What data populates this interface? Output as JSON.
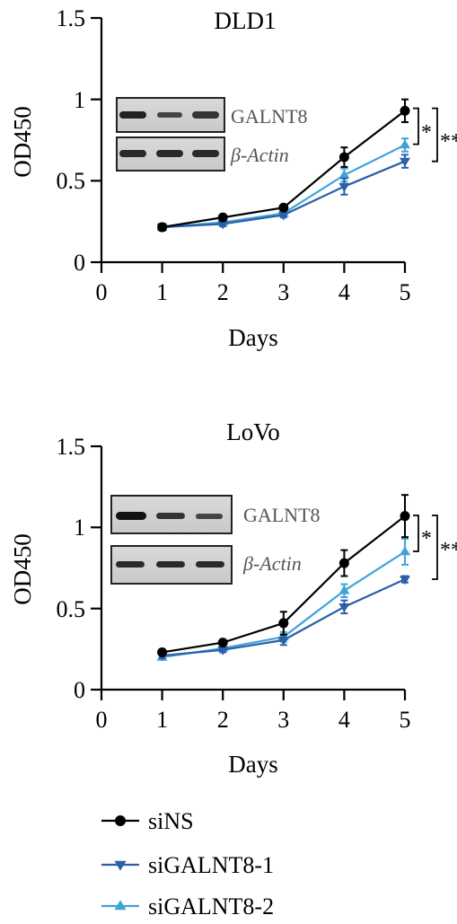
{
  "chart_data": [
    {
      "type": "line",
      "title": "DLD1",
      "xlabel": "Days",
      "ylabel": "OD450",
      "x": [
        1,
        2,
        3,
        4,
        5
      ],
      "xlim": [
        0,
        5
      ],
      "ylim": [
        0,
        1.5
      ],
      "xticks": [
        "0",
        "1",
        "2",
        "3",
        "4",
        "5"
      ],
      "yticks": [
        "0",
        "0.5",
        "1",
        "1.5"
      ],
      "series": [
        {
          "name": "siNS",
          "values": [
            0.215,
            0.275,
            0.335,
            0.645,
            0.93
          ],
          "errors": [
            0.02,
            0.015,
            0.015,
            0.06,
            0.07
          ]
        },
        {
          "name": "siGALNT8-1",
          "values": [
            0.215,
            0.235,
            0.29,
            0.465,
            0.62
          ],
          "errors": [
            0.02,
            0.015,
            0.015,
            0.05,
            0.04
          ]
        },
        {
          "name": "siGALNT8-2",
          "values": [
            0.215,
            0.245,
            0.3,
            0.535,
            0.72
          ],
          "errors": [
            0.02,
            0.015,
            0.015,
            0.04,
            0.04
          ]
        }
      ],
      "significance": [
        "*",
        "**"
      ],
      "blot_labels": [
        "GALNT8",
        "β-Actin"
      ]
    },
    {
      "type": "line",
      "title": "LoVo",
      "xlabel": "Days",
      "ylabel": "OD450",
      "x": [
        1,
        2,
        3,
        4,
        5
      ],
      "xlim": [
        0,
        5
      ],
      "ylim": [
        0,
        1.5
      ],
      "xticks": [
        "0",
        "1",
        "2",
        "3",
        "4",
        "5"
      ],
      "yticks": [
        "0",
        "0.5",
        "1",
        "1.5"
      ],
      "series": [
        {
          "name": "siNS",
          "values": [
            0.23,
            0.29,
            0.41,
            0.78,
            1.07
          ],
          "errors": [
            0.015,
            0.015,
            0.07,
            0.08,
            0.13
          ]
        },
        {
          "name": "siGALNT8-1",
          "values": [
            0.21,
            0.245,
            0.305,
            0.51,
            0.68
          ],
          "errors": [
            0.015,
            0.015,
            0.03,
            0.04,
            0.02
          ]
        },
        {
          "name": "siGALNT8-2",
          "values": [
            0.2,
            0.255,
            0.325,
            0.61,
            0.85
          ],
          "errors": [
            0.015,
            0.015,
            0.03,
            0.04,
            0.08
          ]
        }
      ],
      "significance": [
        "*",
        "**"
      ],
      "blot_labels": [
        "GALNT8",
        "β-Actin"
      ]
    }
  ],
  "legend": [
    {
      "name": "siNS",
      "color": "#000000",
      "marker": "circle"
    },
    {
      "name": "siGALNT8-1",
      "color": "#2b5fa8",
      "marker": "triangle-down"
    },
    {
      "name": "siGALNT8-2",
      "color": "#3fa3d8",
      "marker": "triangle-up"
    }
  ],
  "colors": {
    "siNS": "#000000",
    "siGALNT8-1": "#2b5fa8",
    "siGALNT8-2": "#3fa3d8",
    "blot_label": "#555555"
  }
}
